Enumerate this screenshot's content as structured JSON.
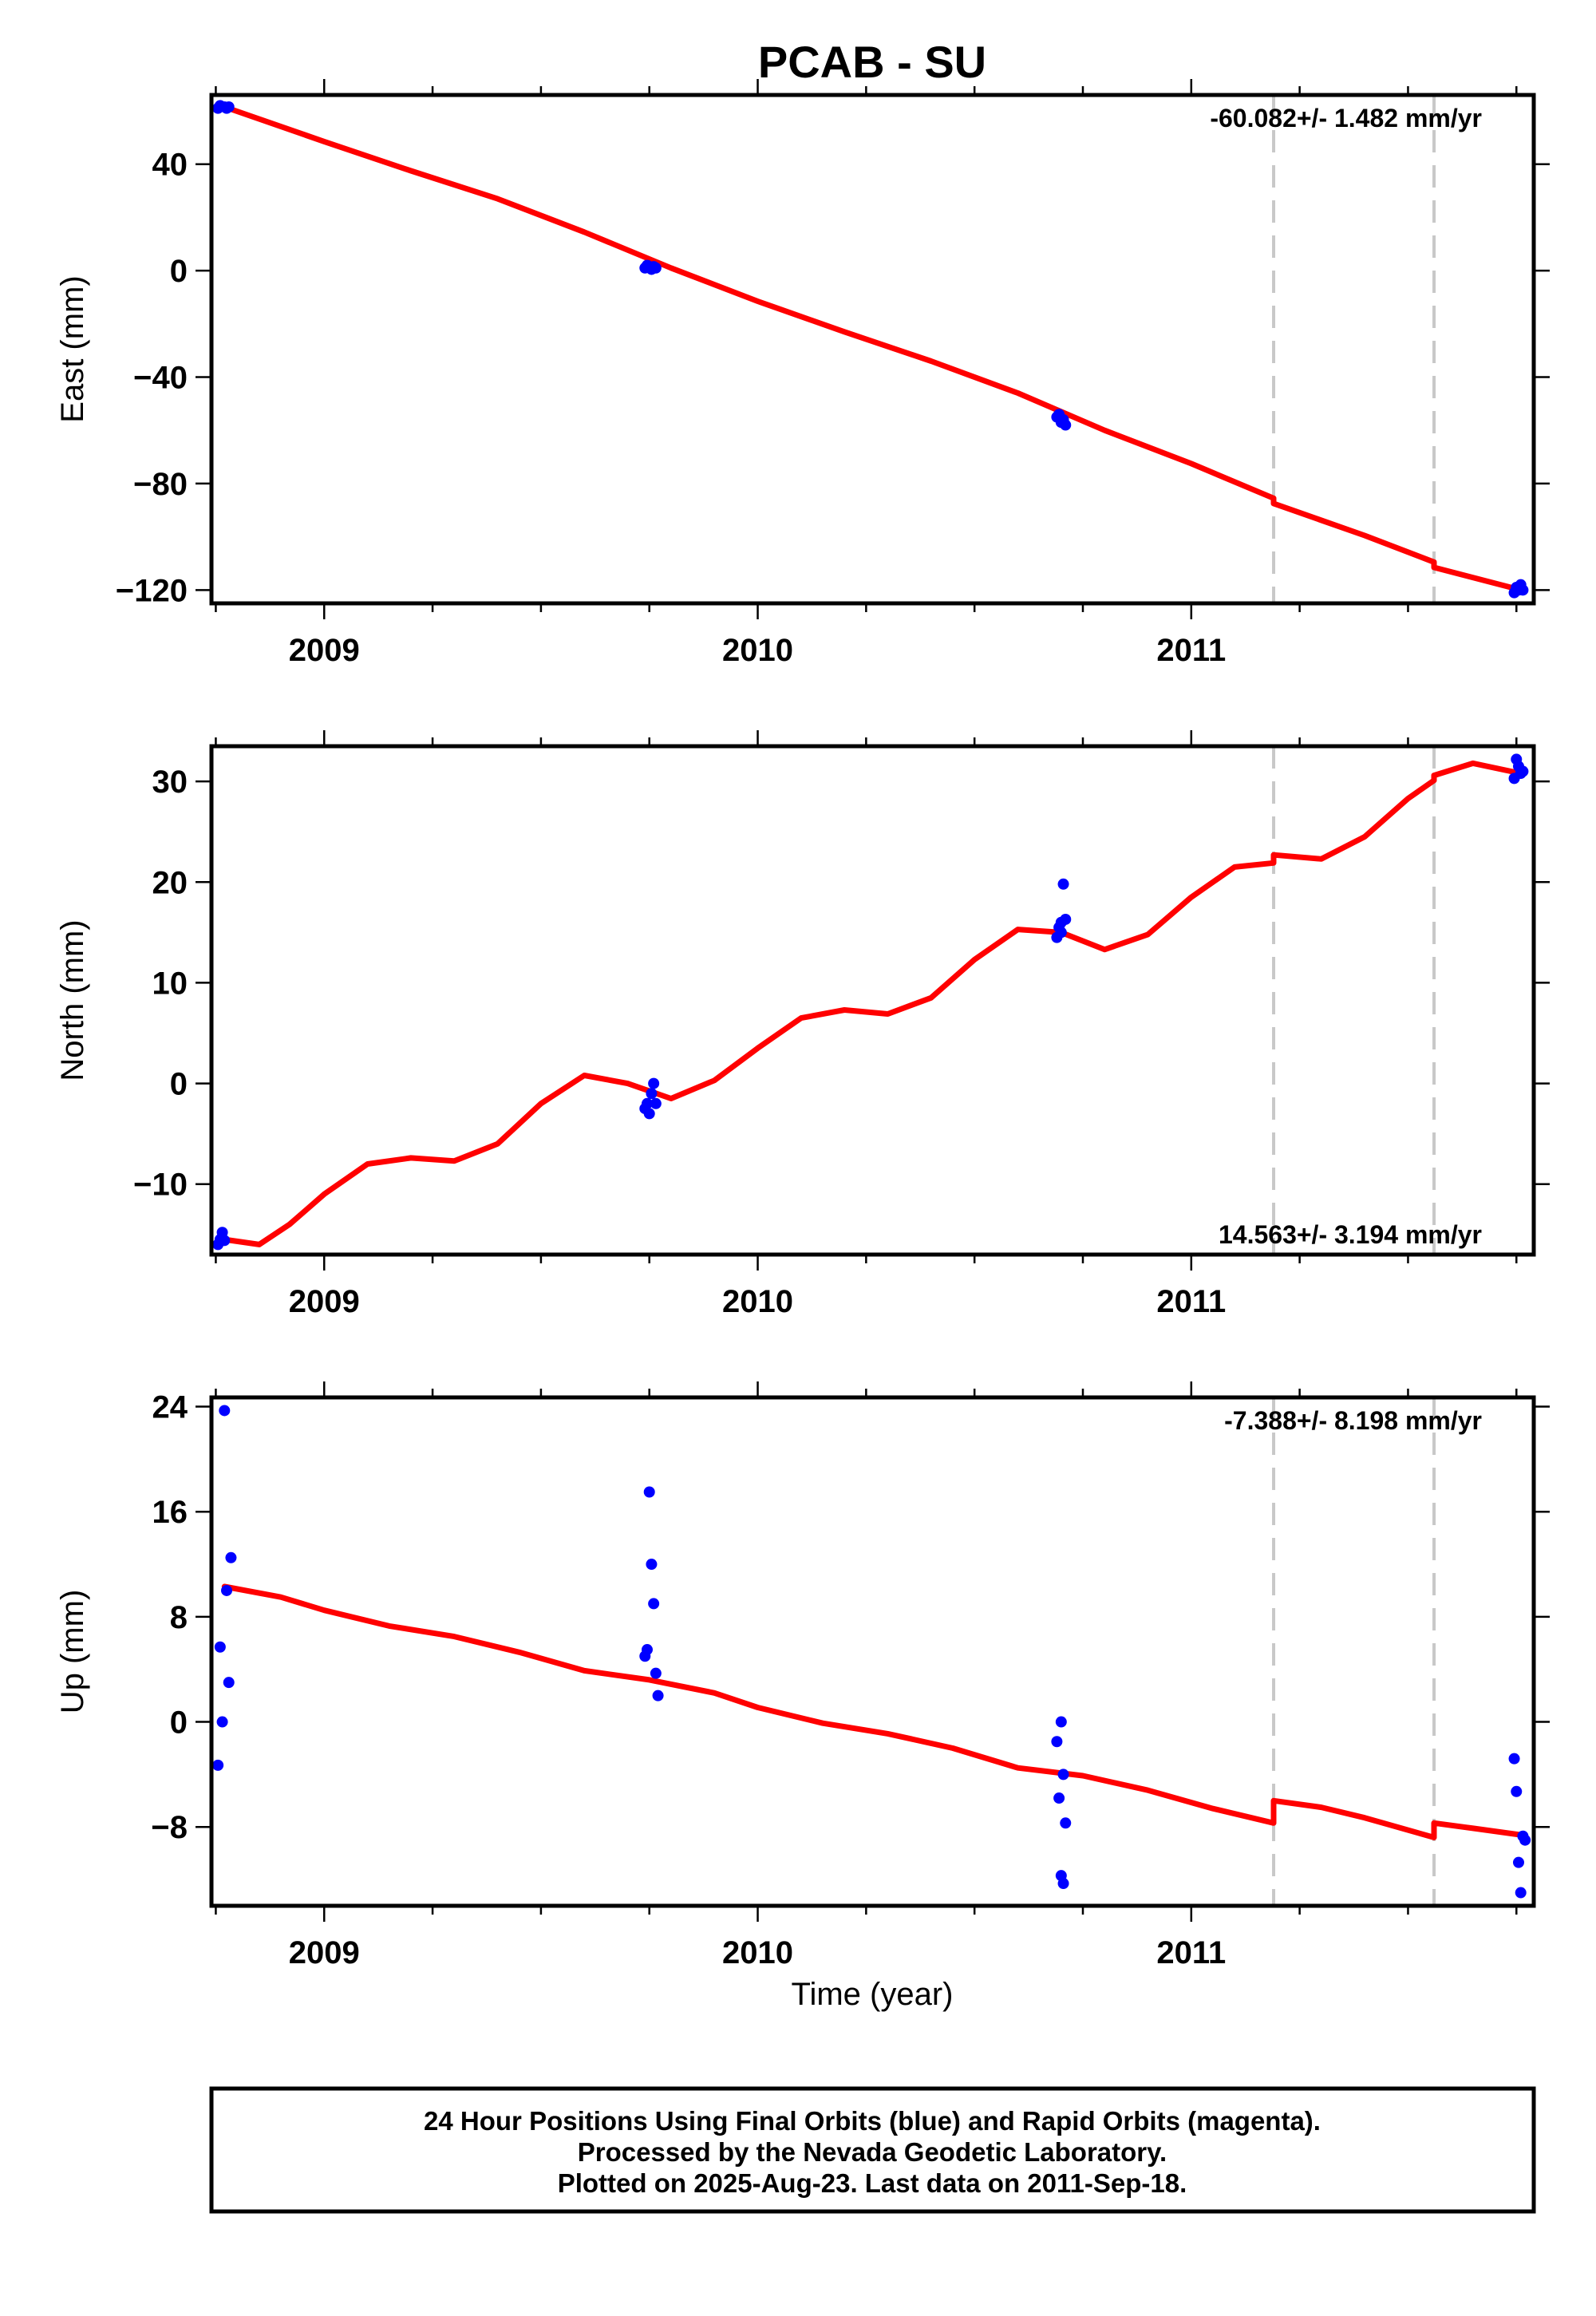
{
  "title": "PCAB - SU",
  "xlabel": "Time (year)",
  "footer": {
    "line1": "24 Hour Positions Using Final Orbits (blue) and Rapid Orbits (magenta).",
    "line2": "Processed by the Nevada Geodetic Laboratory.",
    "line3": "Plotted on 2025-Aug-23. Last data on 2011-Sep-18."
  },
  "colors": {
    "model": "#ff0000",
    "points": "#0000ff",
    "offset_lines": "#c8c8c8"
  },
  "chart_data": [
    {
      "type": "scatter",
      "ylabel": "East (mm)",
      "rate": "-60.082+/- 1.482 mm/yr",
      "rate_position": "top-right",
      "xlim": [
        2008.74,
        2011.79
      ],
      "ylim": [
        -125,
        66
      ],
      "xticks": [
        2009,
        2010,
        2011
      ],
      "xtick_labels": [
        "2009",
        "2010",
        "2011"
      ],
      "yticks": [
        40,
        0,
        -40,
        -80,
        -120
      ],
      "ytick_labels": [
        "40",
        "0",
        "−40",
        "−80",
        "−120"
      ],
      "offset_lines_x": [
        2011.19,
        2011.56
      ],
      "points": [
        [
          2008.755,
          61
        ],
        [
          2008.76,
          62
        ],
        [
          2008.77,
          61.5
        ],
        [
          2008.775,
          61
        ],
        [
          2008.78,
          61.5
        ],
        [
          2009.74,
          1
        ],
        [
          2009.745,
          2
        ],
        [
          2009.75,
          1.5
        ],
        [
          2009.755,
          0.5
        ],
        [
          2009.76,
          1.5
        ],
        [
          2009.765,
          1
        ],
        [
          2010.69,
          -55
        ],
        [
          2010.695,
          -54
        ],
        [
          2010.7,
          -57
        ],
        [
          2010.705,
          -56
        ],
        [
          2010.71,
          -58
        ],
        [
          2011.745,
          -121
        ],
        [
          2011.75,
          -119
        ],
        [
          2011.755,
          -120
        ],
        [
          2011.76,
          -118
        ],
        [
          2011.765,
          -120
        ]
      ],
      "model": [
        [
          2008.77,
          61.5
        ],
        [
          2009.0,
          48.5
        ],
        [
          2009.2,
          37.5
        ],
        [
          2009.4,
          27
        ],
        [
          2009.6,
          14.5
        ],
        [
          2009.8,
          1
        ],
        [
          2010.0,
          -11.5
        ],
        [
          2010.2,
          -23
        ],
        [
          2010.4,
          -34
        ],
        [
          2010.6,
          -46
        ],
        [
          2010.8,
          -60
        ],
        [
          2011.0,
          -72.5
        ],
        [
          2011.19,
          -85.5
        ],
        [
          2011.19,
          -87.5
        ],
        [
          2011.4,
          -99.5
        ],
        [
          2011.56,
          -109.5
        ],
        [
          2011.56,
          -111.5
        ],
        [
          2011.76,
          -120
        ]
      ]
    },
    {
      "type": "scatter",
      "ylabel": "North (mm)",
      "rate": "14.563+/- 3.194 mm/yr",
      "rate_position": "bottom-right",
      "xlim": [
        2008.74,
        2011.79
      ],
      "ylim": [
        -17,
        33.5
      ],
      "xticks": [
        2009,
        2010,
        2011
      ],
      "xtick_labels": [
        "2009",
        "2010",
        "2011"
      ],
      "yticks": [
        30,
        20,
        10,
        0,
        -10
      ],
      "ytick_labels": [
        "30",
        "20",
        "10",
        "0",
        "−10"
      ],
      "offset_lines_x": [
        2011.19,
        2011.56
      ],
      "points": [
        [
          2008.755,
          -16
        ],
        [
          2008.76,
          -15.5
        ],
        [
          2008.765,
          -14.8
        ],
        [
          2008.77,
          -15.6
        ],
        [
          2009.74,
          -2.5
        ],
        [
          2009.745,
          -2
        ],
        [
          2009.75,
          -3
        ],
        [
          2009.755,
          -1
        ],
        [
          2009.76,
          0
        ],
        [
          2009.765,
          -2
        ],
        [
          2010.69,
          14.5
        ],
        [
          2010.695,
          15.5
        ],
        [
          2010.7,
          16
        ],
        [
          2010.705,
          19.8
        ],
        [
          2010.71,
          16.3
        ],
        [
          2010.7,
          15
        ],
        [
          2011.745,
          30.3
        ],
        [
          2011.75,
          32.2
        ],
        [
          2011.755,
          31.5
        ],
        [
          2011.76,
          30.8
        ],
        [
          2011.765,
          31
        ]
      ],
      "model": [
        [
          2008.77,
          -15.5
        ],
        [
          2008.85,
          -16
        ],
        [
          2008.92,
          -14
        ],
        [
          2009.0,
          -11
        ],
        [
          2009.1,
          -8
        ],
        [
          2009.2,
          -7.4
        ],
        [
          2009.3,
          -7.7
        ],
        [
          2009.4,
          -6
        ],
        [
          2009.5,
          -2
        ],
        [
          2009.6,
          0.8
        ],
        [
          2009.7,
          0
        ],
        [
          2009.8,
          -1.5
        ],
        [
          2009.9,
          0.3
        ],
        [
          2010.0,
          3.5
        ],
        [
          2010.1,
          6.5
        ],
        [
          2010.2,
          7.3
        ],
        [
          2010.3,
          6.9
        ],
        [
          2010.4,
          8.5
        ],
        [
          2010.5,
          12.3
        ],
        [
          2010.6,
          15.3
        ],
        [
          2010.7,
          15
        ],
        [
          2010.8,
          13.3
        ],
        [
          2010.9,
          14.8
        ],
        [
          2011.0,
          18.5
        ],
        [
          2011.1,
          21.5
        ],
        [
          2011.19,
          21.9
        ],
        [
          2011.19,
          22.7
        ],
        [
          2011.3,
          22.3
        ],
        [
          2011.4,
          24.5
        ],
        [
          2011.5,
          28.3
        ],
        [
          2011.56,
          30.1
        ],
        [
          2011.56,
          30.6
        ],
        [
          2011.65,
          31.8
        ],
        [
          2011.76,
          30.8
        ]
      ]
    },
    {
      "type": "scatter",
      "ylabel": "Up (mm)",
      "rate": "-7.388+/- 8.198 mm/yr",
      "rate_position": "top-right",
      "xlim": [
        2008.74,
        2011.79
      ],
      "ylim": [
        -14,
        24.7
      ],
      "xticks": [
        2009,
        2010,
        2011
      ],
      "xtick_labels": [
        "2009",
        "2010",
        "2011"
      ],
      "yticks": [
        24,
        16,
        8,
        0,
        -8
      ],
      "ytick_labels": [
        "24",
        "16",
        "8",
        "0",
        "−8"
      ],
      "offset_lines_x": [
        2011.19,
        2011.56
      ],
      "points": [
        [
          2008.755,
          -3.3
        ],
        [
          2008.76,
          5.7
        ],
        [
          2008.765,
          0
        ],
        [
          2008.77,
          23.7
        ],
        [
          2008.775,
          10
        ],
        [
          2008.78,
          3
        ],
        [
          2008.785,
          12.5
        ],
        [
          2009.74,
          5
        ],
        [
          2009.745,
          5.5
        ],
        [
          2009.75,
          17.5
        ],
        [
          2009.755,
          12
        ],
        [
          2009.76,
          9
        ],
        [
          2009.765,
          3.7
        ],
        [
          2009.77,
          2
        ],
        [
          2010.69,
          -1.5
        ],
        [
          2010.695,
          -5.8
        ],
        [
          2010.7,
          0
        ],
        [
          2010.705,
          -4
        ],
        [
          2010.71,
          -7.7
        ],
        [
          2010.7,
          -11.7
        ],
        [
          2010.705,
          -12.3
        ],
        [
          2011.745,
          -2.8
        ],
        [
          2011.75,
          -5.3
        ],
        [
          2011.755,
          -10.7
        ],
        [
          2011.76,
          -13
        ],
        [
          2011.765,
          -8.7
        ],
        [
          2011.77,
          -9
        ]
      ],
      "model": [
        [
          2008.77,
          10.3
        ],
        [
          2008.9,
          9.5
        ],
        [
          2009.0,
          8.5
        ],
        [
          2009.15,
          7.3
        ],
        [
          2009.3,
          6.5
        ],
        [
          2009.45,
          5.3
        ],
        [
          2009.6,
          3.9
        ],
        [
          2009.75,
          3.2
        ],
        [
          2009.9,
          2.2
        ],
        [
          2010.0,
          1.1
        ],
        [
          2010.15,
          -0.1
        ],
        [
          2010.3,
          -0.9
        ],
        [
          2010.45,
          -2
        ],
        [
          2010.6,
          -3.5
        ],
        [
          2010.75,
          -4.1
        ],
        [
          2010.9,
          -5.2
        ],
        [
          2011.05,
          -6.6
        ],
        [
          2011.19,
          -7.7
        ],
        [
          2011.19,
          -6
        ],
        [
          2011.3,
          -6.5
        ],
        [
          2011.4,
          -7.3
        ],
        [
          2011.56,
          -8.8
        ],
        [
          2011.56,
          -7.7
        ],
        [
          2011.65,
          -8.1
        ],
        [
          2011.76,
          -8.6
        ]
      ]
    }
  ]
}
